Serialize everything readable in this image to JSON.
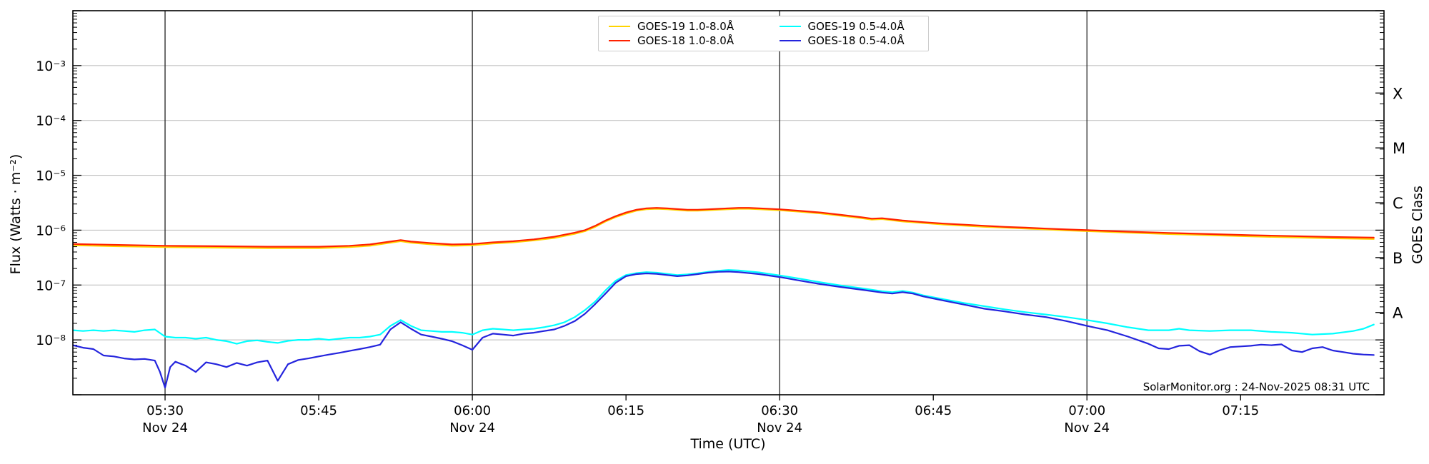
{
  "chart_data": {
    "type": "line",
    "title": "",
    "xlabel": "Time (UTC)",
    "ylabel_left": "Flux (Watts · m⁻²)",
    "ylabel_right": "GOES Class",
    "watermark": "SolarMonitor.org : 24-Nov-2025 08:31 UTC",
    "legend_position": "top-center",
    "grid": true,
    "x_axis": {
      "unit": "minutes after 05:00 UTC",
      "start": 21,
      "end": 149,
      "ticks": [
        {
          "m": 30,
          "label": "05:30",
          "sub": "Nov 24",
          "line": true
        },
        {
          "m": 45,
          "label": "05:45"
        },
        {
          "m": 60,
          "label": "06:00",
          "sub": "Nov 24",
          "line": true
        },
        {
          "m": 75,
          "label": "06:15"
        },
        {
          "m": 90,
          "label": "06:30",
          "sub": "Nov 24",
          "line": true
        },
        {
          "m": 105,
          "label": "06:45"
        },
        {
          "m": 120,
          "label": "07:00",
          "sub": "Nov 24",
          "line": true
        },
        {
          "m": 135,
          "label": "07:15"
        }
      ]
    },
    "y_axis": {
      "scale": "log",
      "min": 1e-09,
      "max": 0.01,
      "major_ticks": [
        {
          "exp": -9,
          "label": ""
        },
        {
          "exp": -8,
          "label": "10⁻⁸"
        },
        {
          "exp": -7,
          "label": "10⁻⁷"
        },
        {
          "exp": -6,
          "label": "10⁻⁶"
        },
        {
          "exp": -5,
          "label": "10⁻⁵"
        },
        {
          "exp": -4,
          "label": "10⁻⁴"
        },
        {
          "exp": -3,
          "label": "10⁻³"
        },
        {
          "exp": -2,
          "label": ""
        }
      ],
      "gridline_exps": [
        -8,
        -7,
        -6,
        -5,
        -4,
        -3
      ]
    },
    "goes_classes": [
      {
        "label": "A",
        "flux": 3.16e-08
      },
      {
        "label": "B",
        "flux": 3.16e-07
      },
      {
        "label": "C",
        "flux": 3.16e-06
      },
      {
        "label": "M",
        "flux": 3.16e-05
      },
      {
        "label": "X",
        "flux": 0.000316
      }
    ],
    "colors": {
      "goes19_long": "#ffd400",
      "goes18_long": "#ff2200",
      "goes19_short": "#00ffff",
      "goes18_short": "#2424dd",
      "gridline": "#b9b9b9",
      "vline": "#222222",
      "frame": "#000000"
    },
    "series": [
      {
        "name": "GOES-19 1.0-8.0Å",
        "color": "#ffd400",
        "x": [
          21,
          25,
          30,
          35,
          40,
          45,
          48,
          50,
          52,
          53,
          54,
          56,
          58,
          60,
          62,
          64,
          66,
          68,
          70,
          71,
          72,
          73,
          74,
          75,
          76,
          77,
          78,
          79,
          80,
          81,
          82,
          83,
          84,
          85,
          86,
          87,
          88,
          90,
          92,
          94,
          96,
          98,
          99,
          100,
          102,
          104,
          106,
          108,
          110,
          112,
          114,
          116,
          118,
          120,
          124,
          128,
          132,
          136,
          140,
          144,
          148
        ],
        "y": [
          5.3e-07,
          5.1e-07,
          4.9e-07,
          4.8e-07,
          4.7e-07,
          4.7e-07,
          4.9e-07,
          5.2e-07,
          5.9e-07,
          6.3e-07,
          5.9e-07,
          5.5e-07,
          5.2e-07,
          5.3e-07,
          5.7e-07,
          6e-07,
          6.5e-07,
          7.2e-07,
          8.6e-07,
          9.6e-07,
          1.15e-06,
          1.44e-06,
          1.73e-06,
          2e-06,
          2.26e-06,
          2.4e-06,
          2.45e-06,
          2.4e-06,
          2.33e-06,
          2.27e-06,
          2.27e-06,
          2.31e-06,
          2.36e-06,
          2.41e-06,
          2.45e-06,
          2.45e-06,
          2.4e-06,
          2.31e-06,
          2.16e-06,
          2.02e-06,
          1.83e-06,
          1.65e-06,
          1.56e-06,
          1.59e-06,
          1.44e-06,
          1.35e-06,
          1.27e-06,
          1.21e-06,
          1.15e-06,
          1.11e-06,
          1.07e-06,
          1.03e-06,
          9.9e-07,
          9.6e-07,
          9e-07,
          8.5e-07,
          8.1e-07,
          7.7e-07,
          7.4e-07,
          7.1e-07,
          6.9e-07
        ]
      },
      {
        "name": "GOES-18 1.0-8.0Å",
        "color": "#ff2200",
        "x": [
          21,
          25,
          30,
          35,
          40,
          45,
          48,
          50,
          52,
          53,
          54,
          56,
          58,
          60,
          62,
          64,
          66,
          68,
          70,
          71,
          72,
          73,
          74,
          75,
          76,
          77,
          78,
          79,
          80,
          81,
          82,
          83,
          84,
          85,
          86,
          87,
          88,
          90,
          92,
          94,
          96,
          98,
          99,
          100,
          102,
          104,
          106,
          108,
          110,
          112,
          114,
          116,
          118,
          120,
          124,
          128,
          132,
          136,
          140,
          144,
          148
        ],
        "y": [
          5.6e-07,
          5.4e-07,
          5.2e-07,
          5.1e-07,
          5e-07,
          5e-07,
          5.2e-07,
          5.5e-07,
          6.2e-07,
          6.6e-07,
          6.2e-07,
          5.8e-07,
          5.5e-07,
          5.6e-07,
          6e-07,
          6.3e-07,
          6.8e-07,
          7.6e-07,
          9e-07,
          1e-06,
          1.2e-06,
          1.5e-06,
          1.8e-06,
          2.1e-06,
          2.35e-06,
          2.5e-06,
          2.55e-06,
          2.5e-06,
          2.42e-06,
          2.36e-06,
          2.36e-06,
          2.4e-06,
          2.45e-06,
          2.5e-06,
          2.55e-06,
          2.55e-06,
          2.5e-06,
          2.4e-06,
          2.25e-06,
          2.1e-06,
          1.9e-06,
          1.72e-06,
          1.62e-06,
          1.65e-06,
          1.5e-06,
          1.4e-06,
          1.32e-06,
          1.26e-06,
          1.2e-06,
          1.15e-06,
          1.11e-06,
          1.07e-06,
          1.03e-06,
          1e-06,
          9.4e-07,
          8.9e-07,
          8.5e-07,
          8.1e-07,
          7.8e-07,
          7.5e-07,
          7.3e-07
        ]
      },
      {
        "name": "GOES-19 0.5-4.0Å",
        "color": "#00ffff",
        "x": [
          21,
          22,
          23,
          24,
          25,
          26,
          27,
          28,
          29,
          30,
          31,
          32,
          33,
          34,
          35,
          36,
          37,
          38,
          39,
          40,
          41,
          42,
          43,
          44,
          45,
          46,
          47,
          48,
          49,
          50,
          51,
          52,
          53,
          54,
          55,
          56,
          57,
          58,
          59,
          60,
          61,
          62,
          63,
          64,
          65,
          66,
          67,
          68,
          69,
          70,
          71,
          72,
          73,
          74,
          75,
          76,
          77,
          78,
          79,
          80,
          81,
          82,
          83,
          84,
          85,
          86,
          88,
          90,
          92,
          94,
          96,
          98,
          100,
          101,
          102,
          103,
          104,
          106,
          108,
          110,
          112,
          114,
          116,
          118,
          120,
          122,
          124,
          126,
          128,
          129,
          130,
          132,
          134,
          136,
          138,
          140,
          142,
          144,
          146,
          147,
          148
        ],
        "y": [
          1.5e-08,
          1.45e-08,
          1.5e-08,
          1.45e-08,
          1.5e-08,
          1.45e-08,
          1.4e-08,
          1.5e-08,
          1.55e-08,
          1.15e-08,
          1.1e-08,
          1.1e-08,
          1.05e-08,
          1.1e-08,
          1e-08,
          9.5e-09,
          8.5e-09,
          9.5e-09,
          9.8e-09,
          9.2e-09,
          8.8e-09,
          9.6e-09,
          1e-08,
          1e-08,
          1.05e-08,
          1e-08,
          1.05e-08,
          1.1e-08,
          1.1e-08,
          1.15e-08,
          1.25e-08,
          1.8e-08,
          2.3e-08,
          1.8e-08,
          1.5e-08,
          1.45e-08,
          1.4e-08,
          1.4e-08,
          1.35e-08,
          1.25e-08,
          1.5e-08,
          1.6e-08,
          1.55e-08,
          1.5e-08,
          1.55e-08,
          1.6e-08,
          1.7e-08,
          1.85e-08,
          2.1e-08,
          2.6e-08,
          3.5e-08,
          5e-08,
          8e-08,
          1.2e-07,
          1.52e-07,
          1.65e-07,
          1.72e-07,
          1.68e-07,
          1.6e-07,
          1.52e-07,
          1.56e-07,
          1.64e-07,
          1.74e-07,
          1.82e-07,
          1.88e-07,
          1.84e-07,
          1.7e-07,
          1.5e-07,
          1.3e-07,
          1.12e-07,
          9.8e-08,
          8.7e-08,
          7.7e-08,
          7.4e-08,
          7.8e-08,
          7.3e-08,
          6.5e-08,
          5.5e-08,
          4.7e-08,
          4.1e-08,
          3.6e-08,
          3.2e-08,
          2.9e-08,
          2.6e-08,
          2.3e-08,
          2e-08,
          1.7e-08,
          1.5e-08,
          1.5e-08,
          1.6e-08,
          1.5e-08,
          1.45e-08,
          1.5e-08,
          1.5e-08,
          1.4e-08,
          1.35e-08,
          1.25e-08,
          1.3e-08,
          1.45e-08,
          1.6e-08,
          1.9e-08
        ]
      },
      {
        "name": "GOES-18 0.5-4.0Å",
        "color": "#2424dd",
        "x": [
          21,
          22,
          23,
          24,
          25,
          26,
          27,
          28,
          29,
          29.5,
          30,
          30.5,
          31,
          32,
          33,
          34,
          35,
          36,
          37,
          38,
          39,
          40,
          41,
          42,
          43,
          44,
          45,
          46,
          47,
          48,
          49,
          50,
          51,
          52,
          53,
          54,
          55,
          56,
          57,
          58,
          59,
          60,
          61,
          62,
          63,
          64,
          65,
          66,
          67,
          68,
          69,
          70,
          71,
          72,
          73,
          74,
          75,
          76,
          77,
          78,
          79,
          80,
          81,
          82,
          83,
          84,
          85,
          86,
          88,
          90,
          92,
          94,
          96,
          98,
          100,
          101,
          102,
          103,
          104,
          106,
          108,
          110,
          112,
          114,
          116,
          118,
          120,
          122,
          124,
          126,
          127,
          128,
          129,
          130,
          131,
          132,
          133,
          134,
          135,
          136,
          137,
          138,
          139,
          140,
          141,
          142,
          143,
          144,
          145,
          146,
          147,
          148
        ],
        "y": [
          8e-09,
          7.2e-09,
          6.8e-09,
          5.2e-09,
          5e-09,
          4.6e-09,
          4.4e-09,
          4.5e-09,
          4.2e-09,
          2.6e-09,
          1.35e-09,
          3.2e-09,
          4e-09,
          3.4e-09,
          2.6e-09,
          3.9e-09,
          3.6e-09,
          3.2e-09,
          3.8e-09,
          3.4e-09,
          3.9e-09,
          4.2e-09,
          1.8e-09,
          3.6e-09,
          4.3e-09,
          4.6e-09,
          5e-09,
          5.4e-09,
          5.8e-09,
          6.3e-09,
          6.8e-09,
          7.4e-09,
          8.2e-09,
          1.55e-08,
          2.1e-08,
          1.6e-08,
          1.25e-08,
          1.15e-08,
          1.05e-08,
          9.5e-09,
          8e-09,
          6.6e-09,
          1.1e-08,
          1.3e-08,
          1.25e-08,
          1.2e-08,
          1.3e-08,
          1.35e-08,
          1.45e-08,
          1.55e-08,
          1.8e-08,
          2.2e-08,
          3e-08,
          4.5e-08,
          7e-08,
          1.1e-07,
          1.45e-07,
          1.58e-07,
          1.63e-07,
          1.6e-07,
          1.52e-07,
          1.45e-07,
          1.5e-07,
          1.58e-07,
          1.68e-07,
          1.74e-07,
          1.76e-07,
          1.72e-07,
          1.58e-07,
          1.4e-07,
          1.2e-07,
          1.04e-07,
          9.2e-08,
          8.2e-08,
          7.3e-08,
          7e-08,
          7.4e-08,
          7e-08,
          6.2e-08,
          5.2e-08,
          4.4e-08,
          3.7e-08,
          3.3e-08,
          2.9e-08,
          2.6e-08,
          2.2e-08,
          1.8e-08,
          1.5e-08,
          1.15e-08,
          8.5e-09,
          7e-09,
          6.8e-09,
          7.8e-09,
          8e-09,
          6.2e-09,
          5.4e-09,
          6.5e-09,
          7.4e-09,
          7.6e-09,
          7.8e-09,
          8.2e-09,
          8e-09,
          8.3e-09,
          6.4e-09,
          6e-09,
          7e-09,
          7.4e-09,
          6.4e-09,
          6e-09,
          5.6e-09,
          5.4e-09,
          5.3e-09
        ]
      }
    ]
  }
}
